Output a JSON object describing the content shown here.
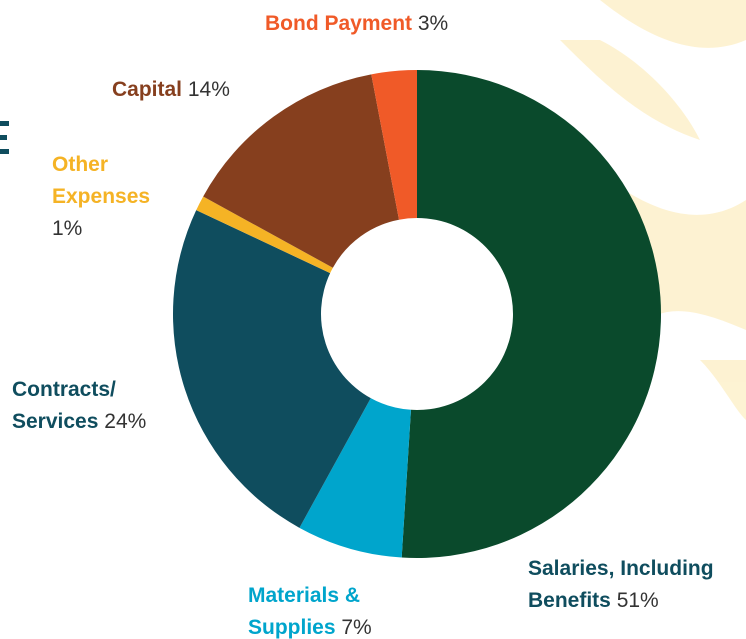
{
  "chart_data": {
    "type": "donut",
    "categories": [
      "Salaries, Including Benefits",
      "Materials & Supplies",
      "Contracts/ Services",
      "Other Expenses",
      "Capital",
      "Bond Payment"
    ],
    "values": [
      51,
      7,
      24,
      1,
      14,
      3
    ],
    "value_labels": [
      "51%",
      "7%",
      "24%",
      "1%",
      "14%",
      "3%"
    ],
    "colors": [
      "#0a4a2c",
      "#00a5cc",
      "#0f4d5e",
      "#f5b325",
      "#863f1e",
      "#f05a28"
    ]
  }
}
